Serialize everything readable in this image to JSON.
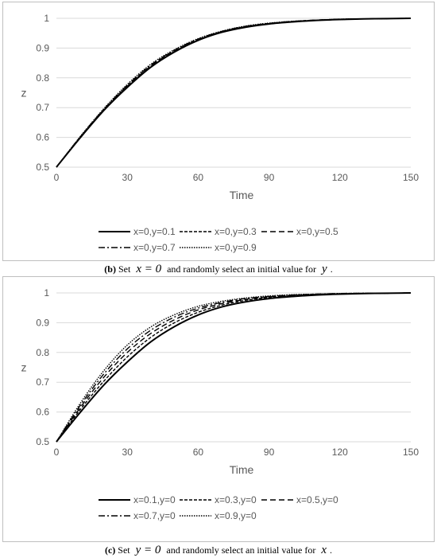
{
  "chart_data": [
    {
      "type": "line",
      "xlabel": "Time",
      "ylabel": "z",
      "xlim": [
        0,
        150
      ],
      "ylim": [
        0.5,
        1.0
      ],
      "xticks": [
        "0",
        "30",
        "60",
        "90",
        "120",
        "150"
      ],
      "yticks": [
        "0.5",
        "0.6",
        "0.7",
        "0.8",
        "0.9",
        "1"
      ],
      "grid": "horizontal",
      "legend_position": "bottom",
      "x": [
        0,
        10,
        20,
        30,
        40,
        50,
        60,
        70,
        80,
        90,
        100,
        110,
        120,
        130,
        140,
        150
      ],
      "series": [
        {
          "name": "x=0,y=0.1",
          "style": "solid",
          "values": [
            0.5,
            0.598,
            0.69,
            0.768,
            0.836,
            0.887,
            0.926,
            0.953,
            0.97,
            0.981,
            0.988,
            0.993,
            0.996,
            0.998,
            0.999,
            1.0
          ]
        },
        {
          "name": "x=0,y=0.3",
          "style": "dashed-fine",
          "values": [
            0.5,
            0.599,
            0.691,
            0.77,
            0.838,
            0.889,
            0.927,
            0.954,
            0.971,
            0.982,
            0.989,
            0.993,
            0.996,
            0.998,
            0.999,
            1.0
          ]
        },
        {
          "name": "x=0,y=0.5",
          "style": "dashed",
          "values": [
            0.5,
            0.6,
            0.692,
            0.772,
            0.84,
            0.891,
            0.928,
            0.955,
            0.972,
            0.982,
            0.989,
            0.994,
            0.996,
            0.998,
            0.999,
            1.0
          ]
        },
        {
          "name": "x=0,y=0.7",
          "style": "dash-dot",
          "values": [
            0.5,
            0.601,
            0.694,
            0.775,
            0.843,
            0.893,
            0.93,
            0.956,
            0.973,
            0.983,
            0.99,
            0.994,
            0.997,
            0.998,
            0.999,
            1.0
          ]
        },
        {
          "name": "x=0,y=0.9",
          "style": "dotted",
          "values": [
            0.5,
            0.602,
            0.696,
            0.778,
            0.846,
            0.895,
            0.932,
            0.957,
            0.974,
            0.984,
            0.99,
            0.994,
            0.997,
            0.998,
            0.999,
            1.0
          ]
        }
      ]
    },
    {
      "type": "line",
      "xlabel": "Time",
      "ylabel": "z",
      "xlim": [
        0,
        150
      ],
      "ylim": [
        0.5,
        1.0
      ],
      "xticks": [
        "0",
        "30",
        "60",
        "90",
        "120",
        "150"
      ],
      "yticks": [
        "0.5",
        "0.6",
        "0.7",
        "0.8",
        "0.9",
        "1"
      ],
      "grid": "horizontal",
      "legend_position": "bottom",
      "x": [
        0,
        10,
        20,
        30,
        40,
        50,
        60,
        70,
        80,
        90,
        100,
        110,
        120,
        130,
        140,
        150
      ],
      "series": [
        {
          "name": "x=0.1,y=0",
          "style": "solid",
          "values": [
            0.5,
            0.598,
            0.69,
            0.768,
            0.836,
            0.887,
            0.926,
            0.953,
            0.97,
            0.981,
            0.988,
            0.993,
            0.996,
            0.998,
            0.999,
            1.0
          ]
        },
        {
          "name": "x=0.3,y=0",
          "style": "dashed-fine",
          "values": [
            0.5,
            0.607,
            0.703,
            0.785,
            0.851,
            0.9,
            0.935,
            0.959,
            0.975,
            0.985,
            0.991,
            0.995,
            0.997,
            0.998,
            0.999,
            1.0
          ]
        },
        {
          "name": "x=0.5,y=0",
          "style": "dashed",
          "values": [
            0.5,
            0.614,
            0.716,
            0.8,
            0.864,
            0.91,
            0.943,
            0.964,
            0.978,
            0.987,
            0.992,
            0.995,
            0.997,
            0.998,
            0.999,
            1.0
          ]
        },
        {
          "name": "x=0.7,y=0",
          "style": "dash-dot",
          "values": [
            0.5,
            0.621,
            0.727,
            0.812,
            0.875,
            0.919,
            0.949,
            0.968,
            0.981,
            0.988,
            0.993,
            0.996,
            0.998,
            0.999,
            0.999,
            1.0
          ]
        },
        {
          "name": "x=0.9,y=0",
          "style": "dotted",
          "values": [
            0.5,
            0.628,
            0.738,
            0.825,
            0.886,
            0.927,
            0.955,
            0.972,
            0.983,
            0.99,
            0.994,
            0.996,
            0.998,
            0.999,
            0.999,
            1.0
          ]
        }
      ]
    }
  ],
  "captions": {
    "b": {
      "label": "(b)",
      "text1": "Set",
      "math1": "x = 0",
      "text2": "and randomly select an initial value for",
      "math2": "y",
      "end": "."
    },
    "c": {
      "label": "(c)",
      "text1": "Set",
      "math1": "y = 0",
      "text2": "and randomly select an initial value for",
      "math2": "x",
      "end": "."
    }
  }
}
